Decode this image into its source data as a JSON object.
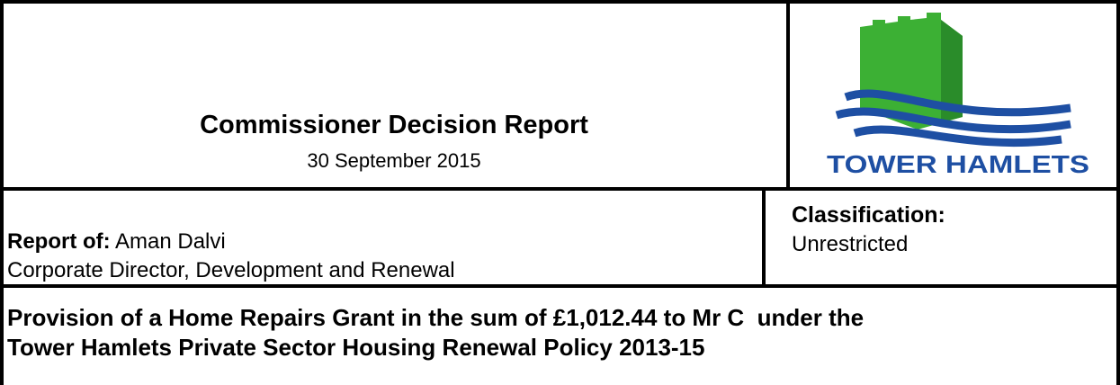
{
  "header": {
    "title": "Commissioner Decision Report",
    "date": "30 September 2015",
    "logo_text": "TOWER HAMLETS"
  },
  "report_of": {
    "label": "Report of:",
    "name": "Aman Dalvi",
    "role": "Corporate Director, Development and Renewal"
  },
  "classification": {
    "label": "Classification:",
    "value": "Unrestricted"
  },
  "subject": [
    "Provision of a Home Repairs Grant in the sum of £1,012.44 to Mr C  under the",
    "Tower Hamlets Private Sector Housing Renewal Policy 2013-15"
  ]
}
